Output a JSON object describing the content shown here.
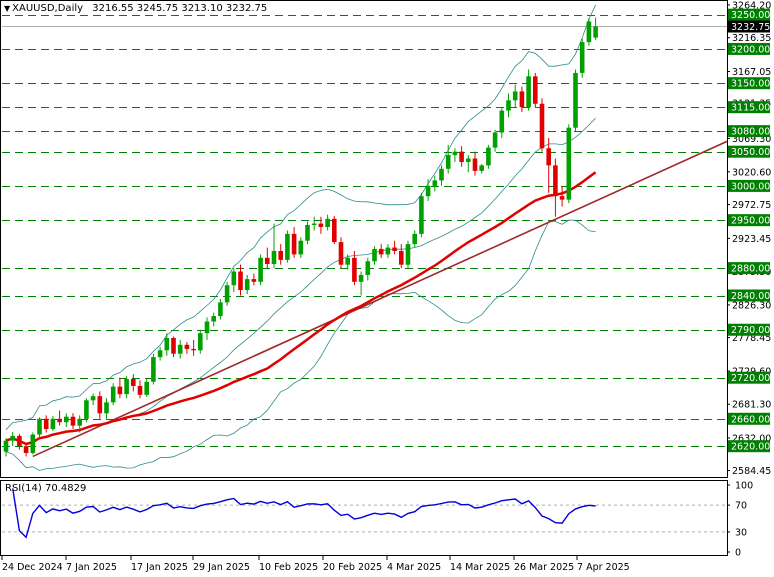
{
  "header": {
    "symbol": "XAUUSD",
    "timeframe": "Daily",
    "open": "3216.55",
    "high": "3245.75",
    "low": "3213.10",
    "close": "3232.75"
  },
  "rsi_panel": {
    "title": "RSI(14) 70.4829"
  },
  "colors": {
    "bull": "#00a000",
    "bear": "#e00000",
    "ma": "#e00000",
    "bollinger": "#2e8b8b",
    "trendline": "#a0282a",
    "level": "#008000",
    "rsi": "#0000dd",
    "price_tag_bg": "#000000"
  },
  "chart_data": [
    {
      "type": "candlestick",
      "title": "XAUUSD,Daily",
      "y_ticks": [
        "3264.20",
        "3216.35",
        "3167.05",
        "3121.35",
        "3069.30",
        "3020.60",
        "2972.75",
        "2923.45",
        "2875.30",
        "2826.30",
        "2778.45",
        "2729.60",
        "2681.30",
        "2632.00",
        "2584.45"
      ],
      "level_labels": [
        "3250.00",
        "3200.00",
        "3150.00",
        "3115.00",
        "3080.00",
        "3050.00",
        "3000.00",
        "2950.00",
        "2880.00",
        "2840.00",
        "2790.00",
        "2720.00",
        "2660.00",
        "2620.00"
      ],
      "current_price": "3232.75",
      "x_labels": [
        "24 Dec 2024",
        "7 Jan 2025",
        "17 Jan 2025",
        "29 Jan 2025",
        "10 Feb 2025",
        "20 Feb 2025",
        "4 Mar 2025",
        "14 Mar 2025",
        "26 Mar 2025",
        "7 Apr 2025"
      ],
      "ylim": [
        2575,
        3270
      ],
      "candles": [
        [
          2612,
          2632,
          2605,
          2628
        ],
        [
          2628,
          2641,
          2620,
          2635
        ],
        [
          2635,
          2638,
          2615,
          2620
        ],
        [
          2620,
          2625,
          2605,
          2610
        ],
        [
          2610,
          2640,
          2608,
          2637
        ],
        [
          2637,
          2662,
          2632,
          2660
        ],
        [
          2660,
          2665,
          2640,
          2645
        ],
        [
          2645,
          2664,
          2642,
          2660
        ],
        [
          2660,
          2672,
          2650,
          2655
        ],
        [
          2655,
          2668,
          2648,
          2663
        ],
        [
          2663,
          2668,
          2645,
          2650
        ],
        [
          2650,
          2665,
          2640,
          2660
        ],
        [
          2660,
          2690,
          2655,
          2687
        ],
        [
          2687,
          2697,
          2680,
          2693
        ],
        [
          2693,
          2700,
          2660,
          2668
        ],
        [
          2668,
          2690,
          2660,
          2684
        ],
        [
          2684,
          2712,
          2680,
          2707
        ],
        [
          2707,
          2720,
          2690,
          2696
        ],
        [
          2696,
          2722,
          2690,
          2718
        ],
        [
          2718,
          2725,
          2700,
          2708
        ],
        [
          2708,
          2716,
          2690,
          2695
        ],
        [
          2695,
          2718,
          2692,
          2714
        ],
        [
          2714,
          2755,
          2710,
          2750
        ],
        [
          2750,
          2765,
          2745,
          2760
        ],
        [
          2760,
          2785,
          2752,
          2778
        ],
        [
          2778,
          2780,
          2750,
          2755
        ],
        [
          2755,
          2775,
          2748,
          2768
        ],
        [
          2768,
          2772,
          2755,
          2762
        ],
        [
          2762,
          2775,
          2752,
          2760
        ],
        [
          2760,
          2790,
          2755,
          2785
        ],
        [
          2785,
          2808,
          2775,
          2802
        ],
        [
          2802,
          2815,
          2795,
          2810
        ],
        [
          2810,
          2835,
          2805,
          2830
        ],
        [
          2830,
          2860,
          2825,
          2855
        ],
        [
          2855,
          2880,
          2845,
          2875
        ],
        [
          2875,
          2885,
          2840,
          2848
        ],
        [
          2848,
          2870,
          2842,
          2864
        ],
        [
          2864,
          2872,
          2855,
          2860
        ],
        [
          2860,
          2900,
          2855,
          2895
        ],
        [
          2895,
          2910,
          2880,
          2886
        ],
        [
          2886,
          2945,
          2880,
          2905
        ],
        [
          2905,
          2915,
          2885,
          2892
        ],
        [
          2892,
          2935,
          2888,
          2930
        ],
        [
          2930,
          2940,
          2895,
          2900
        ],
        [
          2900,
          2925,
          2895,
          2920
        ],
        [
          2920,
          2948,
          2915,
          2943
        ],
        [
          2943,
          2955,
          2935,
          2945
        ],
        [
          2945,
          2955,
          2930,
          2940
        ],
        [
          2940,
          2958,
          2935,
          2952
        ],
        [
          2952,
          2956,
          2915,
          2918
        ],
        [
          2918,
          2925,
          2880,
          2885
        ],
        [
          2885,
          2900,
          2878,
          2895
        ],
        [
          2895,
          2905,
          2855,
          2860
        ],
        [
          2860,
          2875,
          2840,
          2870
        ],
        [
          2870,
          2895,
          2862,
          2890
        ],
        [
          2890,
          2912,
          2885,
          2908
        ],
        [
          2908,
          2915,
          2895,
          2900
        ],
        [
          2900,
          2915,
          2895,
          2910
        ],
        [
          2910,
          2920,
          2900,
          2905
        ],
        [
          2905,
          2915,
          2880,
          2885
        ],
        [
          2885,
          2920,
          2880,
          2915
        ],
        [
          2915,
          2935,
          2910,
          2930
        ],
        [
          2930,
          2990,
          2925,
          2985
        ],
        [
          2985,
          3010,
          2978,
          3000
        ],
        [
          3000,
          3015,
          2992,
          3008
        ],
        [
          3008,
          3030,
          3000,
          3025
        ],
        [
          3025,
          3060,
          3018,
          3045
        ],
        [
          3045,
          3055,
          3035,
          3050
        ],
        [
          3050,
          3058,
          3028,
          3035
        ],
        [
          3035,
          3045,
          3020,
          3040
        ],
        [
          3040,
          3050,
          3015,
          3022
        ],
        [
          3022,
          3032,
          3018,
          3030
        ],
        [
          3030,
          3060,
          3025,
          3056
        ],
        [
          3056,
          3082,
          3050,
          3078
        ],
        [
          3078,
          3115,
          3070,
          3110
        ],
        [
          3110,
          3135,
          3100,
          3125
        ],
        [
          3125,
          3148,
          3115,
          3138
        ],
        [
          3138,
          3145,
          3108,
          3115
        ],
        [
          3115,
          3170,
          3110,
          3160
        ],
        [
          3160,
          3165,
          3115,
          3120
        ],
        [
          3120,
          3128,
          3050,
          3055
        ],
        [
          3055,
          3070,
          2990,
          3030
        ],
        [
          3030,
          3040,
          2955,
          2985
        ],
        [
          2985,
          3000,
          2970,
          2980
        ],
        [
          2980,
          3090,
          2975,
          3085
        ],
        [
          3085,
          3170,
          3080,
          3165
        ],
        [
          3165,
          3215,
          3158,
          3210
        ],
        [
          3210,
          3245,
          3205,
          3240
        ],
        [
          3216.55,
          3245.75,
          3213.1,
          3232.75
        ]
      ]
    },
    {
      "type": "line",
      "title": "RSI(14) 70.4829",
      "y_ticks": [
        "100",
        "70",
        "30",
        "0"
      ],
      "ylim": [
        0,
        100
      ]
    }
  ]
}
